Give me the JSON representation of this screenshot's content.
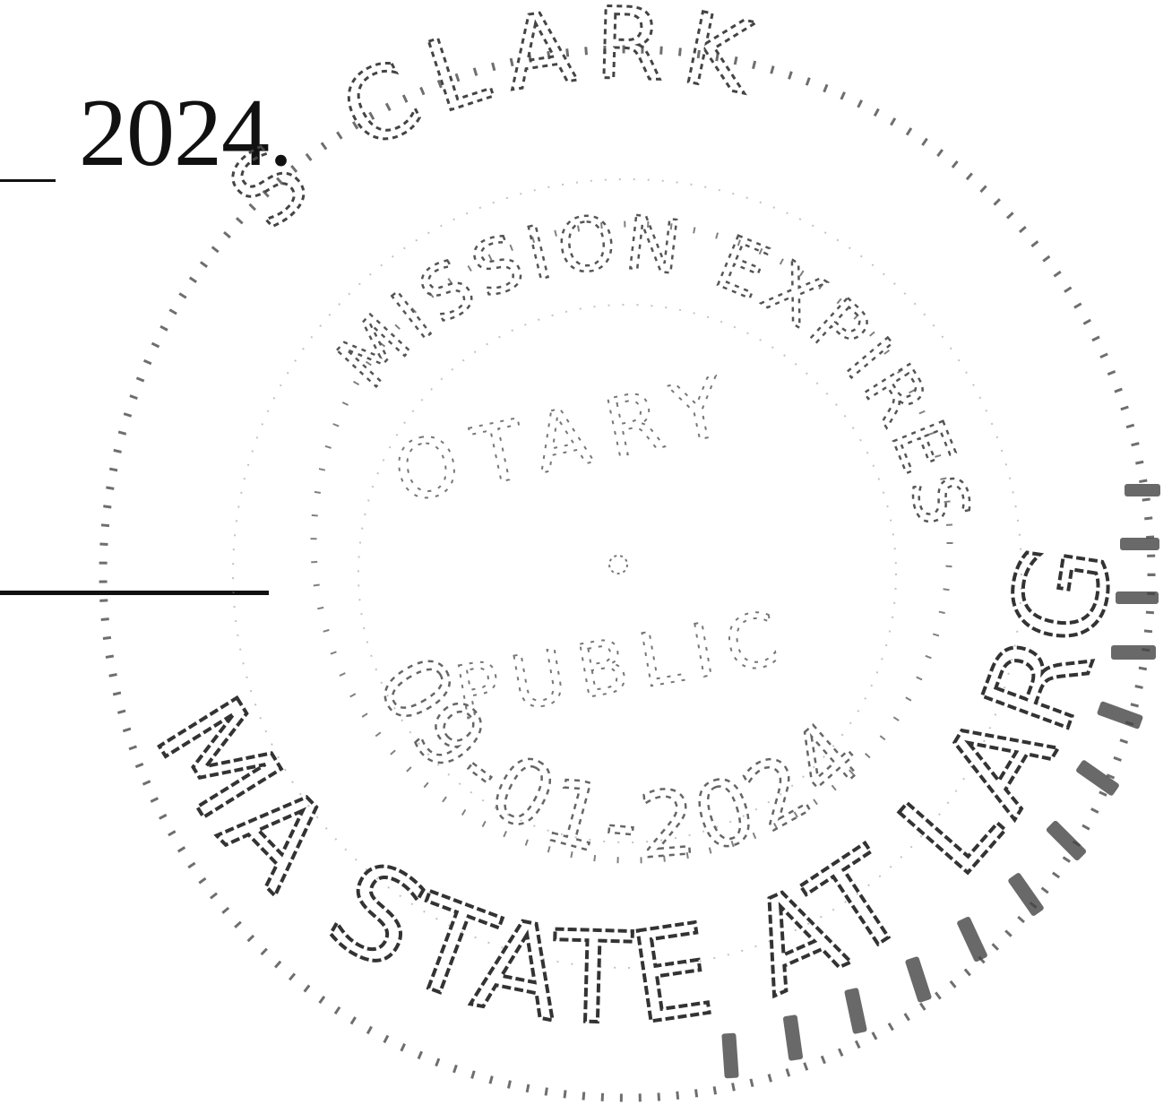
{
  "document": {
    "date_year": "2024."
  },
  "seal": {
    "type": "notary-stamp",
    "name": "S CLARK",
    "top_arc": "S CLARK",
    "commission_arc": "MISSION EXPIRES",
    "center_text_top": "OTARY",
    "center_text_bottom": "PUBLIC",
    "expiration_date": "09-01-2024",
    "bottom_arc": "MA STATE AT LARGE"
  },
  "colors": {
    "ink": "#111111",
    "seal_ink": "#555555",
    "paper": "#ffffff"
  }
}
